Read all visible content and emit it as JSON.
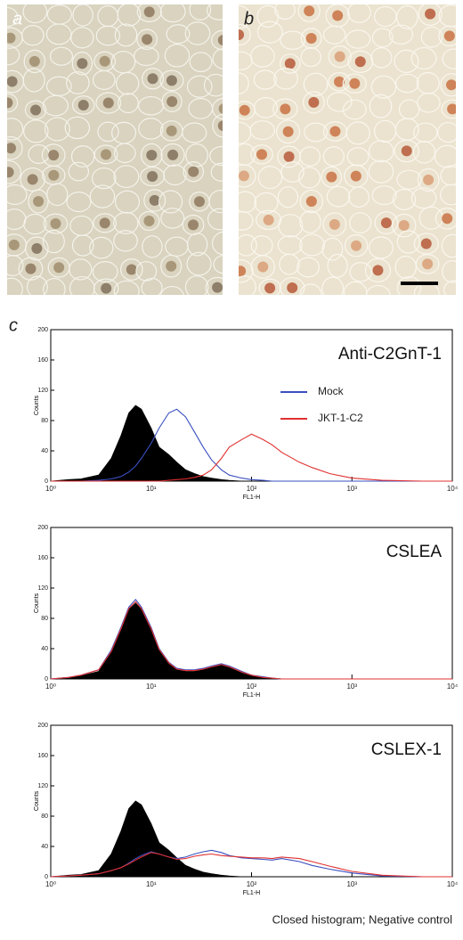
{
  "panels": {
    "a": "a",
    "b": "b",
    "c": "c"
  },
  "footnote": "Closed histogram; Negative control",
  "chart_data": [
    {
      "type": "line",
      "title": "Anti-C2GnT-1",
      "xlabel": "FL1-H",
      "ylabel": "Counts",
      "log_x": true,
      "legend": true,
      "xlim": [
        1,
        10000
      ],
      "ylim": [
        0,
        200
      ],
      "xticks": [
        {
          "value": 1,
          "label": "10⁰"
        },
        {
          "value": 10,
          "label": "10¹"
        },
        {
          "value": 100,
          "label": "10²"
        },
        {
          "value": 1000,
          "label": "10³"
        },
        {
          "value": 10000,
          "label": "10⁴"
        }
      ],
      "yticks": [
        0,
        40,
        80,
        120,
        160,
        200
      ],
      "x": [
        1,
        1.5,
        2,
        3,
        4,
        5,
        6,
        7,
        8,
        10,
        12,
        15,
        18,
        22,
        27,
        33,
        40,
        50,
        60,
        80,
        100,
        130,
        160,
        200,
        300,
        400,
        600,
        1000,
        2000,
        5000,
        10000
      ],
      "series": [
        {
          "color": "#000000",
          "filled": true,
          "values": [
            0,
            2,
            3,
            8,
            30,
            60,
            90,
            100,
            95,
            70,
            45,
            35,
            25,
            15,
            10,
            6,
            4,
            2,
            1,
            0,
            0,
            0,
            0,
            0,
            0,
            0,
            0,
            0,
            0,
            0,
            0
          ]
        },
        {
          "name": "Mock",
          "color": "#3a4fc0",
          "filled": false,
          "values": [
            0,
            0,
            0,
            1,
            3,
            6,
            12,
            20,
            30,
            50,
            70,
            90,
            95,
            85,
            65,
            45,
            28,
            15,
            8,
            4,
            2,
            1,
            0,
            0,
            0,
            0,
            0,
            0,
            0,
            0,
            0
          ]
        },
        {
          "name": "JKT-1-C2",
          "color": "#e03030",
          "filled": false,
          "values": [
            0,
            0,
            0,
            0,
            0,
            0,
            0,
            0,
            0,
            0,
            0,
            1,
            2,
            3,
            5,
            8,
            15,
            30,
            45,
            55,
            62,
            55,
            48,
            38,
            25,
            18,
            10,
            4,
            1,
            0,
            0
          ]
        }
      ]
    },
    {
      "type": "line",
      "title": "CSLEA",
      "xlabel": "FL1-H",
      "ylabel": "Counts",
      "log_x": true,
      "legend": false,
      "xlim": [
        1,
        10000
      ],
      "ylim": [
        0,
        200
      ],
      "xticks": [
        {
          "value": 1,
          "label": "10⁰"
        },
        {
          "value": 10,
          "label": "10¹"
        },
        {
          "value": 100,
          "label": "10²"
        },
        {
          "value": 1000,
          "label": "10³"
        },
        {
          "value": 10000,
          "label": "10⁴"
        }
      ],
      "yticks": [
        0,
        40,
        80,
        120,
        160,
        200
      ],
      "x": [
        1,
        1.5,
        2,
        3,
        4,
        5,
        6,
        7,
        8,
        10,
        12,
        15,
        18,
        22,
        27,
        33,
        40,
        50,
        60,
        80,
        100,
        130,
        160,
        200,
        300,
        400,
        600,
        1000,
        2000,
        5000,
        10000
      ],
      "series": [
        {
          "color": "#000000",
          "filled": true,
          "values": [
            0,
            2,
            4,
            10,
            35,
            65,
            92,
            100,
            92,
            65,
            38,
            20,
            12,
            10,
            10,
            12,
            15,
            18,
            15,
            8,
            4,
            2,
            1,
            0,
            0,
            0,
            0,
            0,
            0,
            0,
            0
          ]
        },
        {
          "color": "#3a4fc0",
          "filled": false,
          "values": [
            0,
            2,
            5,
            12,
            38,
            68,
            95,
            105,
            95,
            68,
            40,
            22,
            14,
            12,
            12,
            14,
            17,
            20,
            17,
            10,
            5,
            3,
            1,
            0,
            0,
            0,
            0,
            0,
            0,
            0,
            0
          ]
        },
        {
          "color": "#e03030",
          "filled": false,
          "values": [
            0,
            2,
            5,
            12,
            36,
            66,
            93,
            102,
            93,
            66,
            39,
            21,
            13,
            11,
            11,
            13,
            16,
            19,
            16,
            9,
            5,
            2,
            1,
            0,
            0,
            0,
            0,
            0,
            0,
            0,
            0
          ]
        }
      ]
    },
    {
      "type": "line",
      "title": "CSLEX-1",
      "xlabel": "FL1-H",
      "ylabel": "Counts",
      "log_x": true,
      "legend": false,
      "xlim": [
        1,
        10000
      ],
      "ylim": [
        0,
        200
      ],
      "xticks": [
        {
          "value": 1,
          "label": "10⁰"
        },
        {
          "value": 10,
          "label": "10¹"
        },
        {
          "value": 100,
          "label": "10²"
        },
        {
          "value": 1000,
          "label": "10³"
        },
        {
          "value": 10000,
          "label": "10⁴"
        }
      ],
      "yticks": [
        0,
        40,
        80,
        120,
        160,
        200
      ],
      "x": [
        1,
        1.5,
        2,
        3,
        4,
        5,
        6,
        7,
        8,
        10,
        12,
        15,
        18,
        22,
        27,
        33,
        40,
        50,
        60,
        80,
        100,
        130,
        160,
        200,
        300,
        400,
        600,
        1000,
        2000,
        5000,
        10000
      ],
      "series": [
        {
          "color": "#000000",
          "filled": true,
          "values": [
            0,
            2,
            3,
            8,
            30,
            60,
            90,
            100,
            95,
            70,
            45,
            35,
            25,
            15,
            10,
            6,
            4,
            2,
            1,
            0,
            0,
            0,
            0,
            0,
            0,
            0,
            0,
            0,
            0,
            0,
            0
          ]
        },
        {
          "color": "#3a4fc0",
          "filled": false,
          "values": [
            0,
            1,
            2,
            4,
            8,
            12,
            18,
            24,
            28,
            33,
            30,
            26,
            24,
            26,
            30,
            33,
            35,
            32,
            28,
            25,
            24,
            23,
            22,
            24,
            20,
            15,
            10,
            5,
            1,
            0,
            0
          ]
        },
        {
          "color": "#e03030",
          "filled": false,
          "values": [
            0,
            1,
            2,
            4,
            8,
            12,
            17,
            22,
            26,
            32,
            30,
            26,
            23,
            24,
            27,
            29,
            30,
            28,
            27,
            26,
            25,
            25,
            24,
            26,
            24,
            20,
            14,
            7,
            2,
            0,
            0
          ]
        }
      ]
    }
  ]
}
